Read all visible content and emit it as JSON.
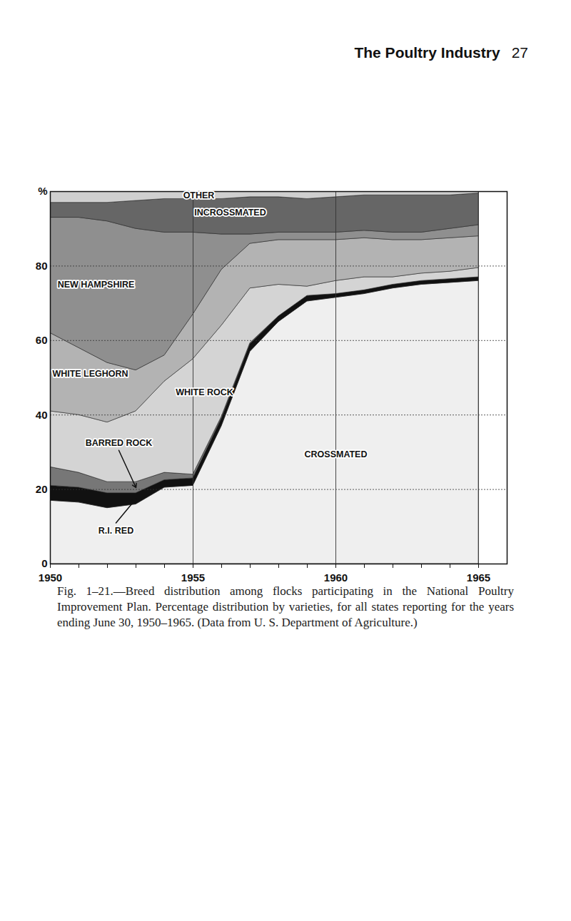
{
  "page_header": "The Poultry Industry",
  "page_number": 27,
  "chart_data": {
    "type": "area",
    "stacked": true,
    "caption": "Fig. 1–21.—Breed distribution among flocks participating in the National Poultry Improvement Plan. Percentage distribution by varieties, for all states reporting for the years ending June 30, 1950–1965. (Data from U. S. Department of Agriculture.)",
    "x": [
      1950,
      1951,
      1952,
      1953,
      1954,
      1955,
      1956,
      1957,
      1958,
      1959,
      1960,
      1961,
      1962,
      1963,
      1964,
      1965
    ],
    "xlim": [
      1950,
      1966
    ],
    "xticks": [
      1950,
      1955,
      1960,
      1965
    ],
    "ylim": [
      0,
      100
    ],
    "yticks": [
      0,
      20,
      40,
      60,
      80,
      {
        "value": 100,
        "label": "%"
      }
    ],
    "grid": true,
    "series": [
      {
        "name": "CROSSMATED",
        "color": "#efefef",
        "values": [
          17,
          16.5,
          15,
          16,
          20.5,
          21,
          37,
          57,
          65,
          70.5,
          71.5,
          72.5,
          74,
          75,
          75.5,
          76
        ]
      },
      {
        "name": "R.I. RED",
        "color": "#111111",
        "values": [
          4,
          4,
          4,
          3,
          2,
          2,
          2,
          2,
          1.5,
          1.5,
          1,
          1,
          1,
          1,
          1,
          1
        ]
      },
      {
        "name": "BARRED ROCK",
        "color": "#777777",
        "values": [
          5,
          4,
          3,
          3,
          2,
          1,
          0.5,
          0.3,
          0,
          0,
          0,
          0,
          0,
          0,
          0,
          0
        ]
      },
      {
        "name": "WHITE ROCK",
        "color": "#d4d4d4",
        "values": [
          15,
          15.5,
          16,
          19,
          24.5,
          31,
          24.5,
          14.7,
          8.5,
          2.5,
          3.5,
          3.5,
          2,
          2,
          2,
          2.5
        ]
      },
      {
        "name": "WHITE LEGHORN",
        "color": "#b3b3b3",
        "values": [
          21,
          18,
          16,
          11,
          7,
          12,
          15,
          12,
          12,
          12.5,
          11,
          10.5,
          10,
          9,
          9,
          8.5
        ]
      },
      {
        "name": "NEW HAMPSHIRE",
        "color": "#8f8f8f",
        "values": [
          31,
          35,
          38,
          38,
          33,
          22,
          9.5,
          2.5,
          2,
          2,
          2,
          2,
          2,
          2,
          2.5,
          3
        ]
      },
      {
        "name": "INCROSSMATED",
        "color": "#666666",
        "values": [
          4,
          4,
          5,
          7.5,
          9,
          9,
          9.5,
          10,
          9.5,
          9,
          9.5,
          9.5,
          10,
          10,
          9,
          8.5
        ]
      },
      {
        "name": "OTHER",
        "color": "#cfcfcf",
        "values": [
          3,
          3,
          3,
          2.5,
          2,
          2,
          2,
          1.5,
          1.5,
          2,
          1.5,
          1,
          1,
          1,
          1,
          0.5
        ]
      }
    ]
  }
}
